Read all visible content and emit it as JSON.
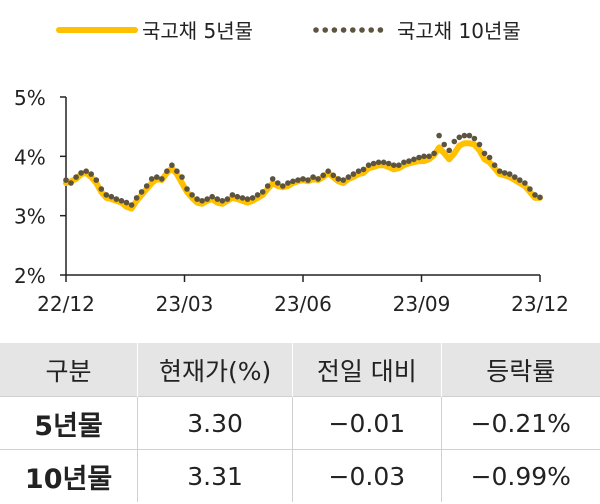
{
  "chart_data": {
    "type": "line",
    "x_ticks": [
      "22/12",
      "23/03",
      "23/06",
      "23/09",
      "23/12"
    ],
    "ylim": [
      2,
      5
    ],
    "y_ticks": [
      "2%",
      "3%",
      "4%",
      "5%"
    ],
    "legend_position": "top",
    "series": [
      {
        "name": "국고채 5년물",
        "style": "solid",
        "color": "#FFC000",
        "values": [
          3.55,
          3.58,
          3.62,
          3.7,
          3.72,
          3.65,
          3.55,
          3.4,
          3.3,
          3.28,
          3.25,
          3.22,
          3.15,
          3.12,
          3.25,
          3.35,
          3.45,
          3.55,
          3.62,
          3.6,
          3.72,
          3.8,
          3.7,
          3.55,
          3.4,
          3.3,
          3.22,
          3.2,
          3.25,
          3.28,
          3.22,
          3.2,
          3.25,
          3.3,
          3.28,
          3.25,
          3.22,
          3.25,
          3.3,
          3.35,
          3.45,
          3.55,
          3.5,
          3.48,
          3.5,
          3.55,
          3.58,
          3.6,
          3.58,
          3.62,
          3.6,
          3.65,
          3.72,
          3.65,
          3.58,
          3.55,
          3.62,
          3.65,
          3.7,
          3.72,
          3.8,
          3.82,
          3.85,
          3.85,
          3.82,
          3.78,
          3.8,
          3.85,
          3.88,
          3.9,
          3.92,
          3.92,
          3.95,
          4.02,
          4.15,
          4.05,
          3.95,
          4.05,
          4.18,
          4.22,
          4.22,
          4.2,
          4.1,
          3.95,
          3.9,
          3.8,
          3.7,
          3.68,
          3.65,
          3.6,
          3.55,
          3.5,
          3.4,
          3.3,
          3.3
        ]
      },
      {
        "name": "국고채 10년물",
        "style": "dotted",
        "color": "#5C5340",
        "values": [
          3.6,
          3.55,
          3.65,
          3.72,
          3.75,
          3.7,
          3.6,
          3.45,
          3.35,
          3.32,
          3.28,
          3.25,
          3.22,
          3.18,
          3.3,
          3.4,
          3.5,
          3.62,
          3.65,
          3.62,
          3.75,
          3.85,
          3.75,
          3.65,
          3.45,
          3.35,
          3.28,
          3.25,
          3.28,
          3.32,
          3.28,
          3.25,
          3.28,
          3.35,
          3.32,
          3.3,
          3.28,
          3.3,
          3.35,
          3.4,
          3.5,
          3.62,
          3.55,
          3.5,
          3.55,
          3.58,
          3.6,
          3.62,
          3.6,
          3.65,
          3.62,
          3.68,
          3.75,
          3.68,
          3.62,
          3.6,
          3.65,
          3.7,
          3.75,
          3.78,
          3.85,
          3.88,
          3.9,
          3.9,
          3.88,
          3.85,
          3.85,
          3.9,
          3.92,
          3.95,
          3.98,
          4.0,
          4.0,
          4.05,
          4.35,
          4.2,
          4.1,
          4.25,
          4.32,
          4.35,
          4.35,
          4.3,
          4.2,
          4.05,
          3.98,
          3.85,
          3.75,
          3.72,
          3.7,
          3.65,
          3.6,
          3.55,
          3.45,
          3.35,
          3.31
        ]
      }
    ]
  },
  "table": {
    "headers": [
      "구분",
      "현재가(%)",
      "전일 대비",
      "등락률"
    ],
    "rows": [
      [
        "5년물",
        "3.30",
        "−0.01",
        "−0.21%"
      ],
      [
        "10년물",
        "3.31",
        "−0.03",
        "−0.99%"
      ]
    ]
  }
}
